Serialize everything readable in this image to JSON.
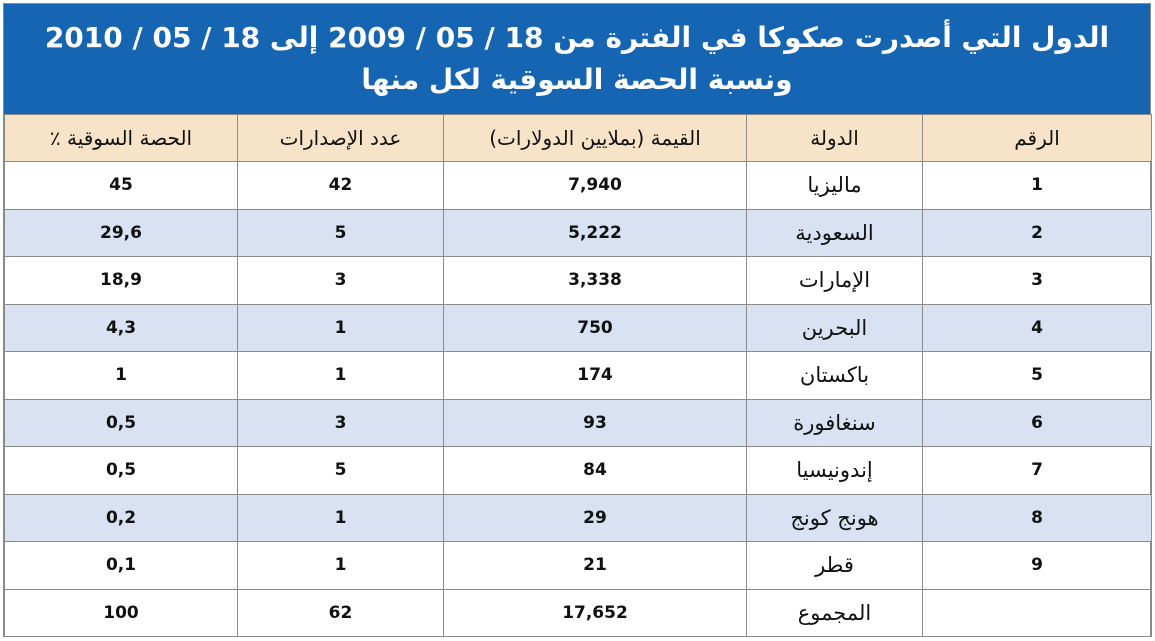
{
  "title": {
    "line1": "الدول التي أصدرت صكوكا في الفترة من 18 / 05 / 2009 إلى 18 / 05 / 2010",
    "line2": "ونسبة الحصة السوقية لكل منها"
  },
  "headers": {
    "number": "الرقم",
    "country": "الدولة",
    "value": "القيمة (بملايين الدولارات)",
    "issues": "عدد الإصدارات",
    "share": "الحصة السوقية ٪"
  },
  "rows": [
    {
      "number": "1",
      "country": "ماليزيا",
      "value": "7,940",
      "issues": "42",
      "share": "45"
    },
    {
      "number": "2",
      "country": "السعودية",
      "value": "5,222",
      "issues": "5",
      "share": "29,6"
    },
    {
      "number": "3",
      "country": "الإمارات",
      "value": "3,338",
      "issues": "3",
      "share": "18,9"
    },
    {
      "number": "4",
      "country": "البحرين",
      "value": "750",
      "issues": "1",
      "share": "4,3"
    },
    {
      "number": "5",
      "country": "باكستان",
      "value": "174",
      "issues": "1",
      "share": "1"
    },
    {
      "number": "6",
      "country": "سنغافورة",
      "value": "93",
      "issues": "3",
      "share": "0,5"
    },
    {
      "number": "7",
      "country": "إندونيسيا",
      "value": "84",
      "issues": "5",
      "share": "0,5"
    },
    {
      "number": "8",
      "country": "هونج كونج",
      "value": "29",
      "issues": "1",
      "share": "0,2"
    },
    {
      "number": "9",
      "country": "قطر",
      "value": "21",
      "issues": "1",
      "share": "0,1"
    }
  ],
  "total": {
    "number": "",
    "country": "المجموع",
    "value": "17,652",
    "issues": "62",
    "share": "100"
  },
  "colors": {
    "title_band": "#1565b3",
    "header_bg": "#f6e3c8",
    "alt_row": "#d8e2f2"
  }
}
